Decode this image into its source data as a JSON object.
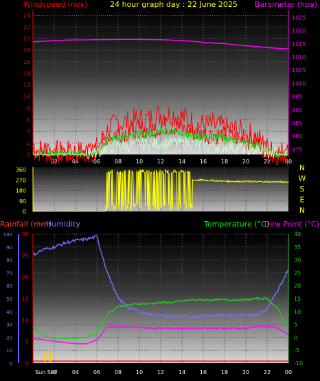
{
  "header": {
    "left": "Windspeed (m/s)",
    "center": "24 hour graph day : 22 June 2025",
    "right": "Barometer (hpa)"
  },
  "x_tick_labels": [
    "02",
    "04",
    "06",
    "08",
    "10",
    "12",
    "14",
    "16",
    "18",
    "20",
    "22",
    "00"
  ],
  "x_tick_labels_bottom": [
    "Sun Set",
    "02",
    "04",
    "06",
    "08",
    "10",
    "12",
    "14",
    "16",
    "18",
    "20",
    "22",
    "00"
  ],
  "colors": {
    "windspeed": "#ff0000",
    "windavg": "#00dd00",
    "windgust_light": "#ccffcc",
    "barometer": "#ff00ff",
    "direction": "#ffff00",
    "rain": "#ff4040",
    "humidity": "#7070ff",
    "temperature": "#22cc22",
    "dewpoint": "#ff00ff",
    "text_red": "#ff0000",
    "text_yellow": "#ffff00",
    "text_magenta": "#ff00ff",
    "text_green": "#00ff00",
    "text_blue": "#8080ff",
    "text_white": "#ffffff"
  },
  "chart_data": [
    {
      "type": "line",
      "title": "24 hour graph day : 22 June 2025",
      "ylabel": "Windspeed (m/s)",
      "ylabel_right": "Barometer (hpa)",
      "y_ticks_left": [
        0,
        2,
        4,
        6,
        8,
        10,
        12,
        14,
        16,
        18,
        20,
        22,
        24
      ],
      "ylim_left": [
        0,
        25
      ],
      "y_ticks_right": [
        975,
        980,
        985,
        990,
        995,
        1000,
        1005,
        1010,
        1015,
        1020,
        1025
      ],
      "ylim_right": [
        973,
        1028
      ],
      "x": [
        0,
        1,
        2,
        3,
        4,
        5,
        6,
        7,
        8,
        9,
        10,
        11,
        12,
        13,
        14,
        15,
        16,
        17,
        18,
        19,
        20,
        21,
        22,
        23,
        24
      ],
      "series": [
        {
          "values": [
            1,
            0.6,
            0.3,
            0.2,
            0.3,
            0.4,
            1,
            4,
            5.5,
            5.5,
            6,
            6,
            7,
            7,
            6.5,
            5.5,
            5,
            5,
            4.5,
            4.2,
            3.5,
            3,
            1,
            0.3,
            0.2
          ]
        },
        {
          "values": [
            0.2,
            0.2,
            0.1,
            0.1,
            0.1,
            0.2,
            0.5,
            2.5,
            3,
            3,
            3.5,
            3.5,
            4,
            4,
            3.8,
            3.2,
            3,
            3,
            2.8,
            2.5,
            2,
            1.5,
            0.5,
            0.1,
            0.1
          ]
        },
        {
          "values": [
            0,
            0,
            0,
            0,
            0,
            0,
            0.3,
            1.2,
            1.5,
            1.5,
            1.8,
            1.8,
            2,
            2,
            2,
            1.7,
            1.5,
            1.5,
            1.4,
            1.3,
            1,
            0.8,
            0.2,
            0,
            0
          ]
        },
        {
          "values": [
            1015.8,
            1016,
            1016.2,
            1016.4,
            1016.5,
            1016.5,
            1016.6,
            1016.6,
            1016.7,
            1016.7,
            1016.7,
            1016.6,
            1016.6,
            1016.4,
            1016.2,
            1016,
            1015.6,
            1015.3,
            1015.1,
            1014.7,
            1014.3,
            1014,
            1013.6,
            1013.3,
            1013.1
          ]
        }
      ]
    },
    {
      "type": "line",
      "y_ticks": [
        0,
        90,
        180,
        270,
        360
      ],
      "ylim": [
        0,
        360
      ],
      "right_labels": [
        "N",
        "W",
        "S",
        "E",
        "N"
      ],
      "x": [
        0,
        1,
        2,
        3,
        4,
        5,
        6,
        7,
        8,
        9,
        10,
        11,
        12,
        13,
        14,
        15,
        16,
        17,
        18,
        19,
        20,
        21,
        22,
        23,
        24
      ],
      "series": [
        {
          "values": [
            0,
            0,
            0,
            0,
            0,
            0,
            0,
            180,
            160,
            190,
            180,
            200,
            170,
            180,
            230,
            270,
            270,
            265,
            260,
            258,
            258,
            256,
            255,
            254,
            254
          ]
        }
      ]
    },
    {
      "type": "line",
      "ylabel": "Rainfall (mm)",
      "ylabel2": "Humidity",
      "ylabel_right": "Temperature (°C)",
      "ylabel_right2": "Dew Point (°C)",
      "y_ticks_humidity": [
        0,
        10,
        20,
        30,
        40,
        50,
        60,
        70,
        80,
        90,
        100
      ],
      "y_ticks_rain": [
        0,
        5,
        10,
        15,
        20,
        25,
        30
      ],
      "y_ticks_right": [
        -10,
        -5,
        0,
        5,
        10,
        15,
        20,
        25,
        30,
        35,
        40
      ],
      "ylim_right": [
        -10,
        40
      ],
      "x": [
        0,
        1,
        2,
        3,
        4,
        5,
        6,
        7,
        8,
        9,
        10,
        11,
        12,
        13,
        14,
        15,
        16,
        17,
        18,
        19,
        20,
        21,
        22,
        23,
        24
      ],
      "series": [
        {
          "values": [
            84,
            88,
            90,
            93,
            95,
            96,
            98,
            70,
            50,
            43,
            40,
            38,
            37,
            36,
            36,
            36,
            37,
            37,
            37,
            37,
            38,
            37,
            42,
            56,
            73
          ]
        },
        {
          "values": [
            3.5,
            1,
            -0.5,
            -0.5,
            -0.5,
            0,
            1.5,
            9,
            12,
            12.5,
            13,
            13,
            13.5,
            13.5,
            14,
            14.5,
            14.5,
            14.5,
            14.5,
            14.5,
            14.5,
            15,
            15,
            11,
            3.5
          ]
        },
        {
          "values": [
            -0.5,
            -1,
            -1.5,
            -2,
            -2.5,
            -2.5,
            -1,
            4,
            4,
            4,
            4,
            3.5,
            3.5,
            3.5,
            3.5,
            3.5,
            3.5,
            3.5,
            3.5,
            3.5,
            3.5,
            4,
            4.5,
            3.5,
            1
          ]
        },
        {
          "values": [
            0,
            0,
            0,
            0,
            0,
            0,
            0,
            0,
            0,
            0,
            0,
            0,
            0,
            0,
            0,
            0,
            0,
            0,
            0,
            0,
            0,
            0,
            0,
            0,
            0
          ]
        }
      ]
    }
  ]
}
